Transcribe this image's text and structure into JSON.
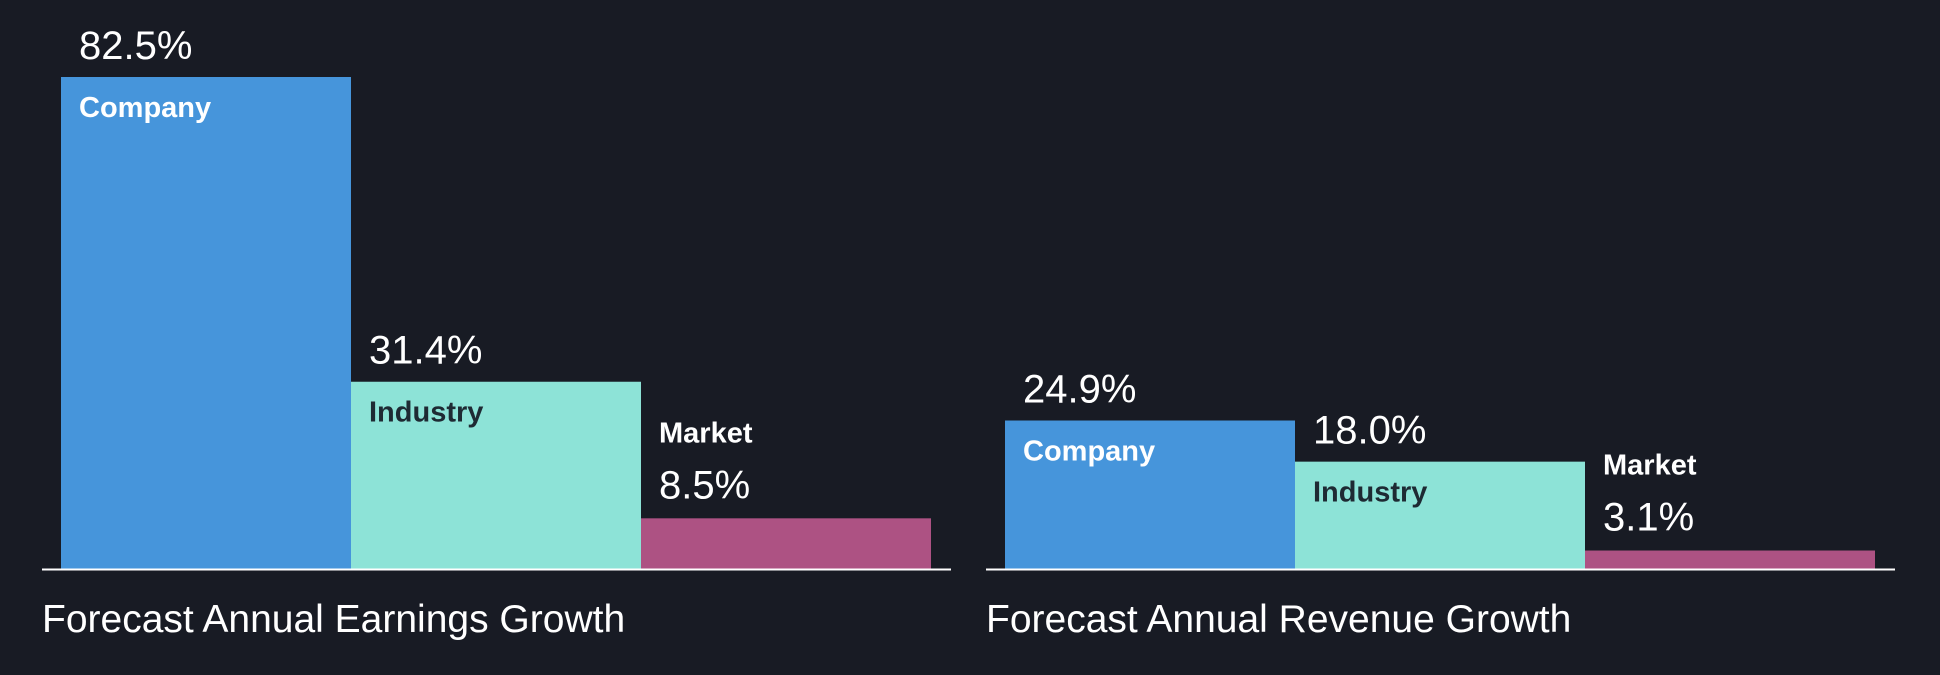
{
  "colors": {
    "background": "#181b24",
    "company": "#4695db",
    "industry": "#8de3d7",
    "market": "#ad5283",
    "baseline": "#ffffff",
    "text": "#ffffff",
    "label_on_light": "#1e2a33"
  },
  "chart_data": [
    {
      "type": "bar",
      "title": "Forecast Annual Earnings Growth",
      "categories": [
        "Company",
        "Industry",
        "Market"
      ],
      "values": [
        82.5,
        31.4,
        8.5
      ],
      "value_labels": [
        "82.5%",
        "31.4%",
        "8.5%"
      ],
      "unit": "%",
      "ylim": [
        0,
        82.5
      ],
      "grid": false,
      "legend": "none"
    },
    {
      "type": "bar",
      "title": "Forecast Annual Revenue Growth",
      "categories": [
        "Company",
        "Industry",
        "Market"
      ],
      "values": [
        24.9,
        18.0,
        3.1
      ],
      "value_labels": [
        "24.9%",
        "18.0%",
        "3.1%"
      ],
      "unit": "%",
      "ylim": [
        0,
        82.5
      ],
      "grid": false,
      "legend": "none"
    }
  ]
}
